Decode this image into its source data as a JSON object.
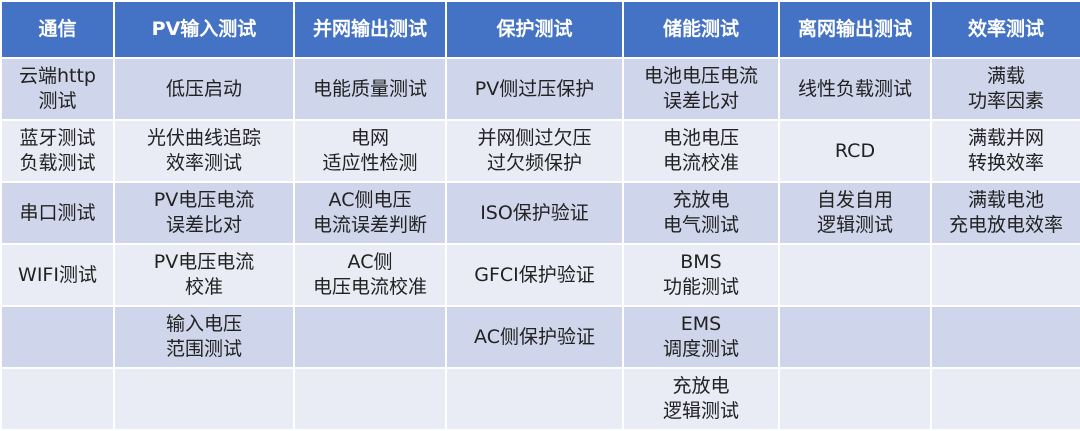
{
  "colors": {
    "header": "#4472C4",
    "row_dark": "#CFD5EA",
    "row_light": "#E9EBF5"
  },
  "headers": [
    "通信",
    "PV输入测试",
    "并网输出测试",
    "保护测试",
    "储能测试",
    "离网输出测试",
    "效率测试"
  ],
  "rows": [
    [
      "云端http\n测试",
      "低压启动",
      "电能质量测试",
      "PV侧过压保护",
      "电池电压电流\n误差比对",
      "线性负载测试",
      "满载\n功率因素"
    ],
    [
      "蓝牙测试\n负载测试",
      "光伏曲线追踪\n效率测试",
      "电网\n适应性检测",
      "并网侧过欠压\n过欠频保护",
      "电池电压\n电流校准",
      "RCD",
      "满载并网\n转换效率"
    ],
    [
      "串口测试",
      "PV电压电流\n误差比对",
      "AC侧电压\n电流误差判断",
      "ISO保护验证",
      "充放电\n电气测试",
      "自发自用\n逻辑测试",
      "满载电池\n充电放电效率"
    ],
    [
      "WIFI测试",
      "PV电压电流\n校准",
      "AC侧\n电压电流校准",
      "GFCI保护验证",
      "BMS\n功能测试",
      "",
      ""
    ],
    [
      "",
      "输入电压\n范围测试",
      "",
      "AC侧保护验证",
      "EMS\n调度测试",
      "",
      ""
    ],
    [
      "",
      "",
      "",
      "",
      "充放电\n逻辑测试",
      "",
      ""
    ]
  ]
}
